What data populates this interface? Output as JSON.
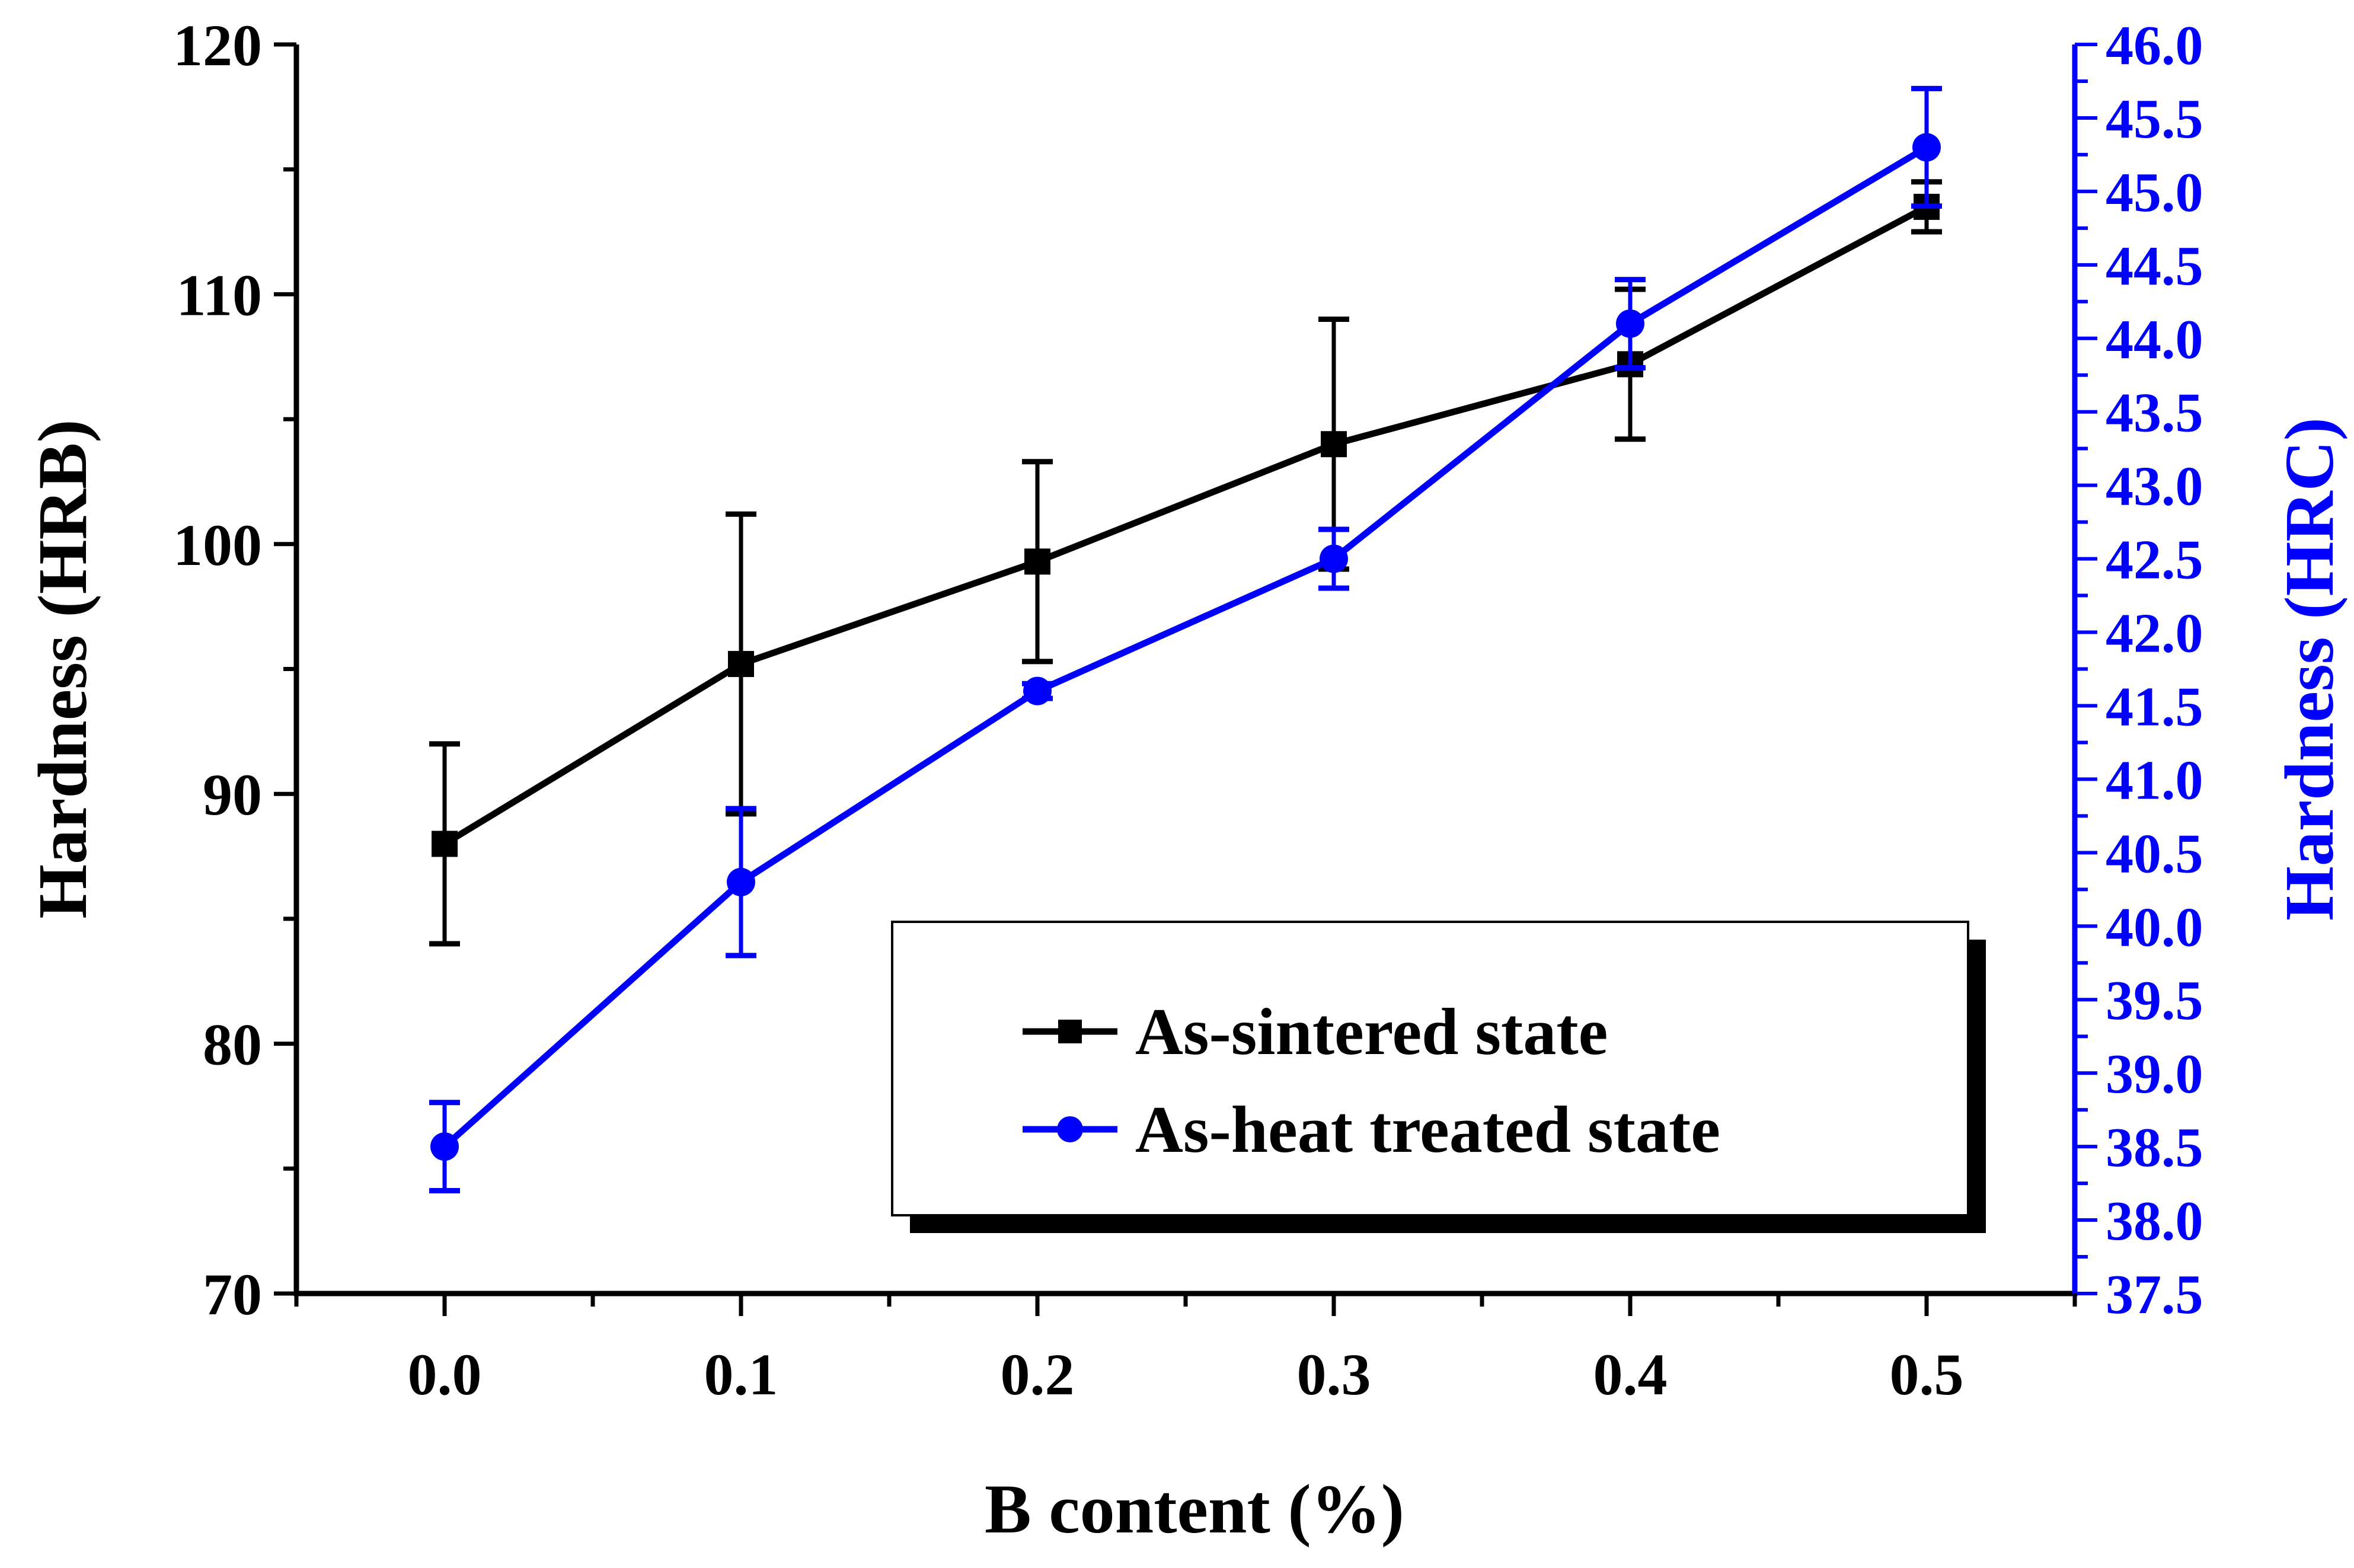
{
  "chart_data": {
    "type": "line",
    "xlabel": "B content (%)",
    "ylabel_left": "Hardness (HRB)",
    "ylabel_right": "Hardness (HRC)",
    "x_categories": [
      "0.0",
      "0.1",
      "0.2",
      "0.3",
      "0.4",
      "0.5"
    ],
    "x": [
      0.0,
      0.1,
      0.2,
      0.3,
      0.4,
      0.5
    ],
    "xlim": [
      -0.05,
      0.55
    ],
    "ylim_left": [
      70,
      120
    ],
    "ylim_right": [
      37.5,
      46.0
    ],
    "yticks_left": [
      "70",
      "80",
      "90",
      "100",
      "110",
      "120"
    ],
    "yticks_right": [
      "37.5",
      "38.0",
      "38.5",
      "39.0",
      "39.5",
      "40.0",
      "40.5",
      "41.0",
      "41.5",
      "42.0",
      "42.5",
      "43.0",
      "43.5",
      "44.0",
      "44.5",
      "45.0",
      "45.5",
      "46.0"
    ],
    "grid": false,
    "legend_position": "bottom-right",
    "series": [
      {
        "name": "As-sintered state",
        "axis": "left",
        "marker": "square",
        "color": "#000000",
        "values": [
          88.0,
          95.2,
          99.3,
          104.0,
          107.2,
          113.5
        ],
        "errors": [
          4.0,
          6.0,
          4.0,
          5.0,
          3.0,
          1.0
        ]
      },
      {
        "name": "As-heat treated state",
        "axis": "right",
        "marker": "circle",
        "color": "#0000ff",
        "values": [
          38.5,
          40.3,
          41.6,
          42.5,
          44.1,
          45.3
        ],
        "errors": [
          0.3,
          0.5,
          0.05,
          0.2,
          0.3,
          0.4
        ]
      }
    ]
  }
}
